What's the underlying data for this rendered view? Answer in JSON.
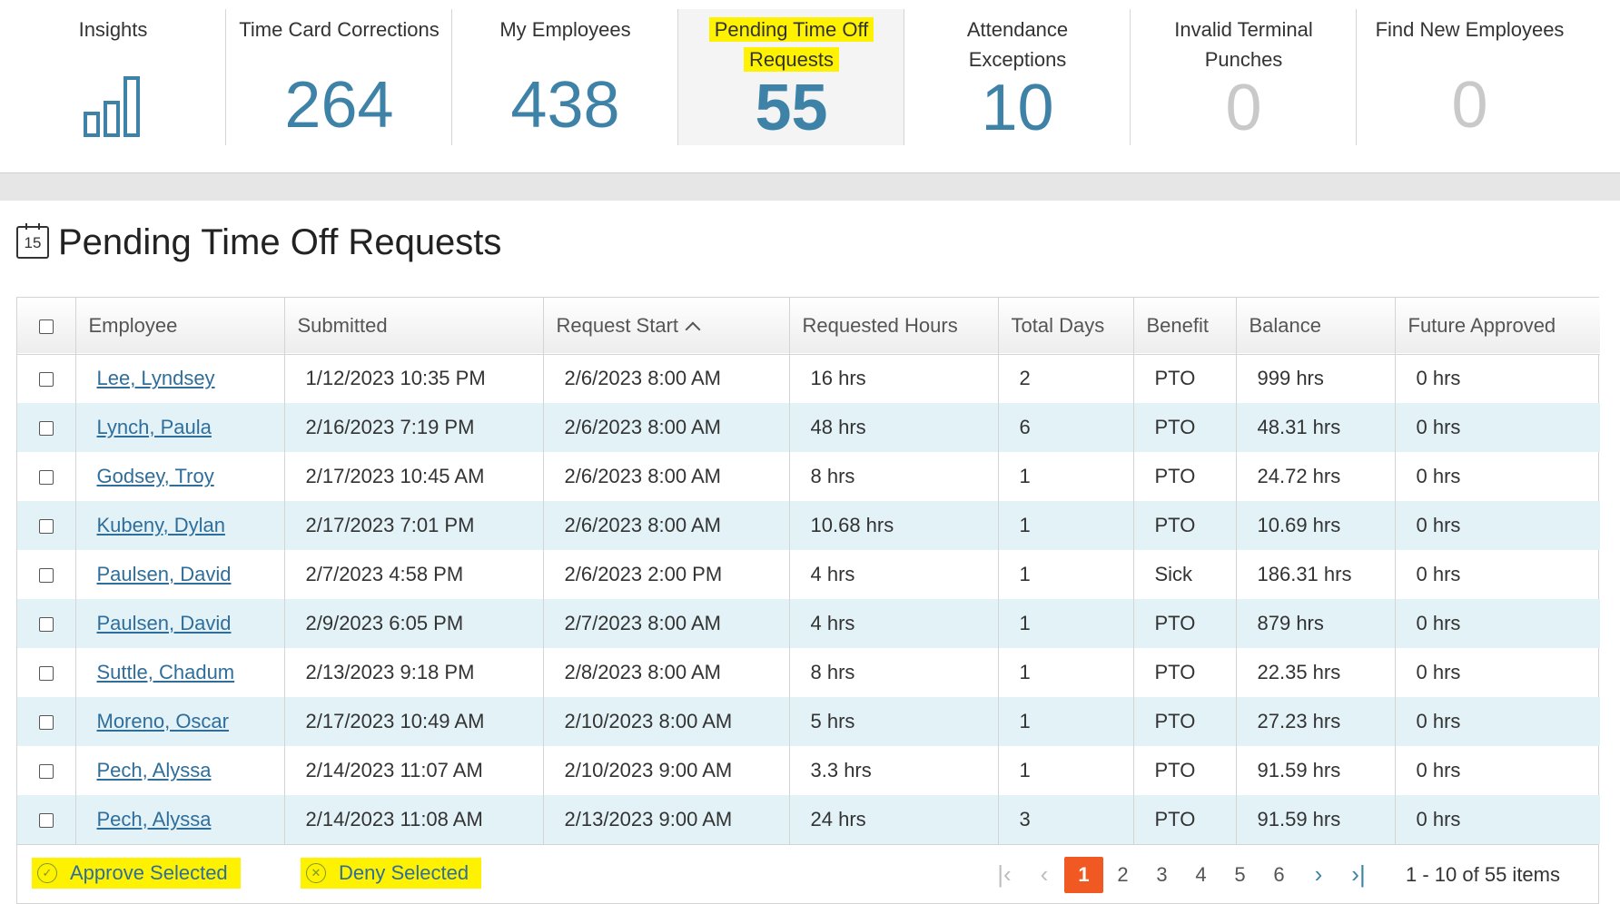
{
  "tiles": [
    {
      "label": "Insights",
      "value": "",
      "icon": "bar-chart-icon"
    },
    {
      "label": "Time Card Corrections",
      "value": "264"
    },
    {
      "label": "My Employees",
      "value": "438"
    },
    {
      "label_line1": "Pending Time Off",
      "label_line2": "Requests",
      "value": "55"
    },
    {
      "label_line1": "Attendance",
      "label_line2": "Exceptions",
      "value": "10"
    },
    {
      "label_line1": "Invalid Terminal",
      "label_line2": "Punches",
      "value": "0"
    },
    {
      "label": "Find New Employees",
      "value": "0"
    }
  ],
  "section": {
    "title": "Pending Time Off Requests",
    "icon_text": "15"
  },
  "grid": {
    "headers": [
      "Employee",
      "Submitted",
      "Request Start",
      "Requested Hours",
      "Total Days",
      "Benefit",
      "Balance",
      "Future Approved"
    ],
    "rows": [
      {
        "employee": "Lee, Lyndsey",
        "submitted": "1/12/2023 10:35 PM",
        "start": "2/6/2023 8:00 AM",
        "hours": "16 hrs",
        "days": "2",
        "benefit": "PTO",
        "balance": "999 hrs",
        "future": "0 hrs"
      },
      {
        "employee": "Lynch, Paula",
        "submitted": "2/16/2023 7:19 PM",
        "start": "2/6/2023 8:00 AM",
        "hours": "48 hrs",
        "days": "6",
        "benefit": "PTO",
        "balance": "48.31 hrs",
        "future": "0 hrs"
      },
      {
        "employee": "Godsey, Troy",
        "submitted": "2/17/2023 10:45 AM",
        "start": "2/6/2023 8:00 AM",
        "hours": "8 hrs",
        "days": "1",
        "benefit": "PTO",
        "balance": "24.72 hrs",
        "future": "0 hrs"
      },
      {
        "employee": "Kubeny, Dylan",
        "submitted": "2/17/2023 7:01 PM",
        "start": "2/6/2023 8:00 AM",
        "hours": "10.68 hrs",
        "days": "1",
        "benefit": "PTO",
        "balance": "10.69 hrs",
        "future": "0 hrs"
      },
      {
        "employee": "Paulsen, David",
        "submitted": "2/7/2023 4:58 PM",
        "start": "2/6/2023 2:00 PM",
        "hours": "4 hrs",
        "days": "1",
        "benefit": "Sick",
        "balance": "186.31 hrs",
        "future": "0 hrs"
      },
      {
        "employee": "Paulsen, David",
        "submitted": "2/9/2023 6:05 PM",
        "start": "2/7/2023 8:00 AM",
        "hours": "4 hrs",
        "days": "1",
        "benefit": "PTO",
        "balance": "879 hrs",
        "future": "0 hrs"
      },
      {
        "employee": "Suttle, Chadum",
        "submitted": "2/13/2023 9:18 PM",
        "start": "2/8/2023 8:00 AM",
        "hours": "8 hrs",
        "days": "1",
        "benefit": "PTO",
        "balance": "22.35 hrs",
        "future": "0 hrs"
      },
      {
        "employee": "Moreno, Oscar",
        "submitted": "2/17/2023 10:49 AM",
        "start": "2/10/2023 8:00 AM",
        "hours": "5 hrs",
        "days": "1",
        "benefit": "PTO",
        "balance": "27.23 hrs",
        "future": "0 hrs"
      },
      {
        "employee": "Pech, Alyssa",
        "submitted": "2/14/2023 11:07 AM",
        "start": "2/10/2023 9:00 AM",
        "hours": "3.3 hrs",
        "days": "1",
        "benefit": "PTO",
        "balance": "91.59 hrs",
        "future": "0 hrs"
      },
      {
        "employee": "Pech, Alyssa",
        "submitted": "2/14/2023 11:08 AM",
        "start": "2/13/2023 9:00 AM",
        "hours": "24 hrs",
        "days": "3",
        "benefit": "PTO",
        "balance": "91.59 hrs",
        "future": "0 hrs"
      }
    ]
  },
  "footer": {
    "approve_label": "Approve Selected",
    "deny_label": "Deny Selected",
    "pages": [
      "1",
      "2",
      "3",
      "4",
      "5",
      "6"
    ],
    "current_page": "1",
    "items_info": "1 - 10 of 55 items"
  },
  "colors": {
    "accent": "#3e82a8",
    "highlight": "#fff200",
    "pager_current": "#f05a22",
    "row_alt": "#e3f2f7"
  }
}
